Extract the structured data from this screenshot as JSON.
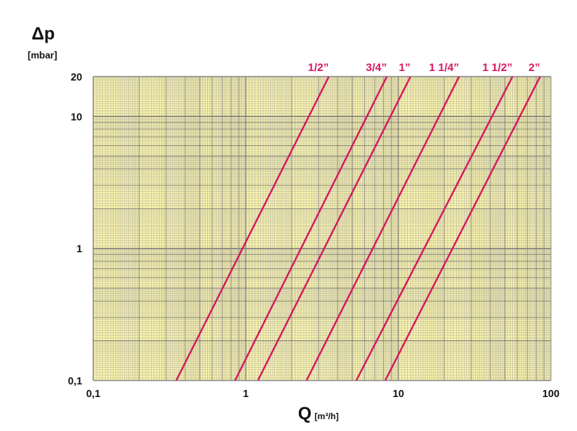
{
  "chart_data": {
    "type": "line",
    "xscale": "log",
    "yscale": "log",
    "xlim": [
      0.1,
      100
    ],
    "ylim": [
      0.1,
      20
    ],
    "grid": true,
    "xlabel": "Q",
    "xlabel_unit": "[m³/h]",
    "ylabel": "Δp",
    "ylabel_unit": "[mbar]",
    "x_ticks": [
      {
        "value": 0.1,
        "label": "0,1"
      },
      {
        "value": 1,
        "label": "1"
      },
      {
        "value": 10,
        "label": "10"
      },
      {
        "value": 100,
        "label": "100"
      }
    ],
    "y_ticks": [
      {
        "value": 0.1,
        "label": "0,1"
      },
      {
        "value": 1,
        "label": "1"
      },
      {
        "value": 10,
        "label": "10"
      },
      {
        "value": 20,
        "label": "20"
      }
    ],
    "series": [
      {
        "name": "1/2”",
        "x": [
          0.35,
          3.5
        ],
        "y": [
          0.1,
          20
        ]
      },
      {
        "name": "3/4”",
        "x": [
          0.85,
          8.4
        ],
        "y": [
          0.1,
          20
        ]
      },
      {
        "name": "1”",
        "x": [
          1.2,
          12
        ],
        "y": [
          0.1,
          20
        ]
      },
      {
        "name": "1 1/4”",
        "x": [
          2.5,
          25
        ],
        "y": [
          0.1,
          20
        ]
      },
      {
        "name": "1 1/2”",
        "x": [
          5.3,
          56
        ],
        "y": [
          0.1,
          20
        ]
      },
      {
        "name": "2”",
        "x": [
          8.2,
          85
        ],
        "y": [
          0.1,
          20
        ]
      }
    ]
  },
  "colors": {
    "plot_background": "#fdf6a8",
    "grid_minor": "#a9a9a9",
    "grid_major": "#7a7a7a",
    "series_line": "#d6175f",
    "series_label": "#d6175f",
    "text": "#111111"
  }
}
